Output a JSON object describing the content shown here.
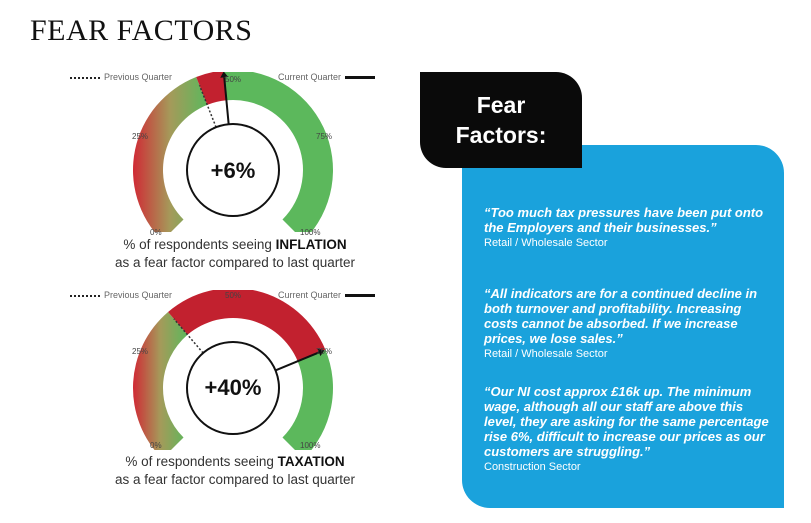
{
  "page_title": "FEAR FACTORS",
  "legend": {
    "previous": "Previous Quarter",
    "current": "Current Quarter"
  },
  "ticks": {
    "t0": "0%",
    "t25": "25%",
    "t50": "50%",
    "t75": "75%",
    "t100": "100%"
  },
  "gauges": [
    {
      "value_text": "+6%",
      "previous_pct": 42,
      "current_pct": 48,
      "caption_prefix": "% of respondents seeing ",
      "caption_keyword": "INFLATION",
      "caption_suffix": "as a fear factor compared to last quarter"
    },
    {
      "value_text": "+40%",
      "previous_pct": 35,
      "current_pct": 75,
      "caption_prefix": "% of respondents seeing ",
      "caption_keyword": "TAXATION",
      "caption_suffix": "as a fear factor compared to last quarter"
    }
  ],
  "panel": {
    "heading_line1": "Fear",
    "heading_line2": "Factors:",
    "quotes": [
      {
        "text": "“Too much tax pressures have been put onto the Employers and their businesses.”",
        "sector": "Retail / Wholesale Sector"
      },
      {
        "text": "“All indicators are for a continued decline in both turnover and profitability. Increasing costs cannot be absorbed. If we increase prices, we lose sales.”",
        "sector": "Retail / Wholesale Sector"
      },
      {
        "text": "“Our NI cost approx £16k up. The minimum wage, although all our staff are above this level, they are asking for the same percentage rise 6%, difficult to increase our prices as our customers are struggling.”",
        "sector": "Construction Sector"
      }
    ]
  },
  "colors": {
    "red": "#c2212f",
    "green": "#5cb85c",
    "blue": "#1aa2dc",
    "black": "#0a0a0a"
  }
}
